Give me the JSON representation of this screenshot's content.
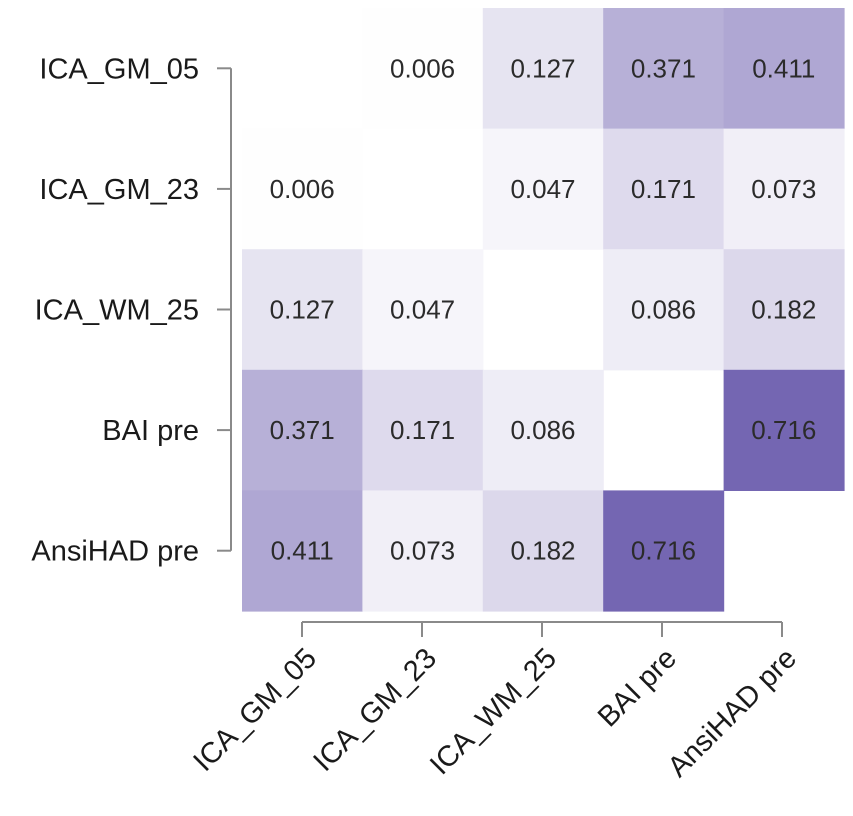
{
  "chart_data": {
    "type": "heatmap",
    "title": "",
    "row_labels": [
      "ICA_GM_05",
      "ICA_GM_23",
      "ICA_WM_25",
      "BAI pre",
      "AnsiHAD pre"
    ],
    "col_labels": [
      "ICA_GM_05",
      "ICA_GM_23",
      "ICA_WM_25",
      "BAI pre",
      "AnsiHAD pre"
    ],
    "values": [
      [
        null,
        0.006,
        0.127,
        0.371,
        0.411
      ],
      [
        0.006,
        null,
        0.047,
        0.171,
        0.073
      ],
      [
        0.127,
        0.047,
        null,
        0.086,
        0.182
      ],
      [
        0.371,
        0.171,
        0.086,
        null,
        0.716
      ],
      [
        0.411,
        0.073,
        0.182,
        0.716,
        null
      ]
    ],
    "labels": [
      [
        "",
        "0.006",
        "0.127",
        "0.371",
        "0.411"
      ],
      [
        "0.006",
        "",
        "0.047",
        "0.171",
        "0.073"
      ],
      [
        "0.127",
        "0.047",
        "",
        "0.086",
        "0.182"
      ],
      [
        "0.371",
        "0.171",
        "0.086",
        "",
        "0.716"
      ],
      [
        "0.411",
        "0.073",
        "0.182",
        "0.716",
        ""
      ]
    ],
    "color_range": [
      0,
      0.716
    ],
    "color_low": "#ffffff",
    "color_high": "#7466b2"
  }
}
